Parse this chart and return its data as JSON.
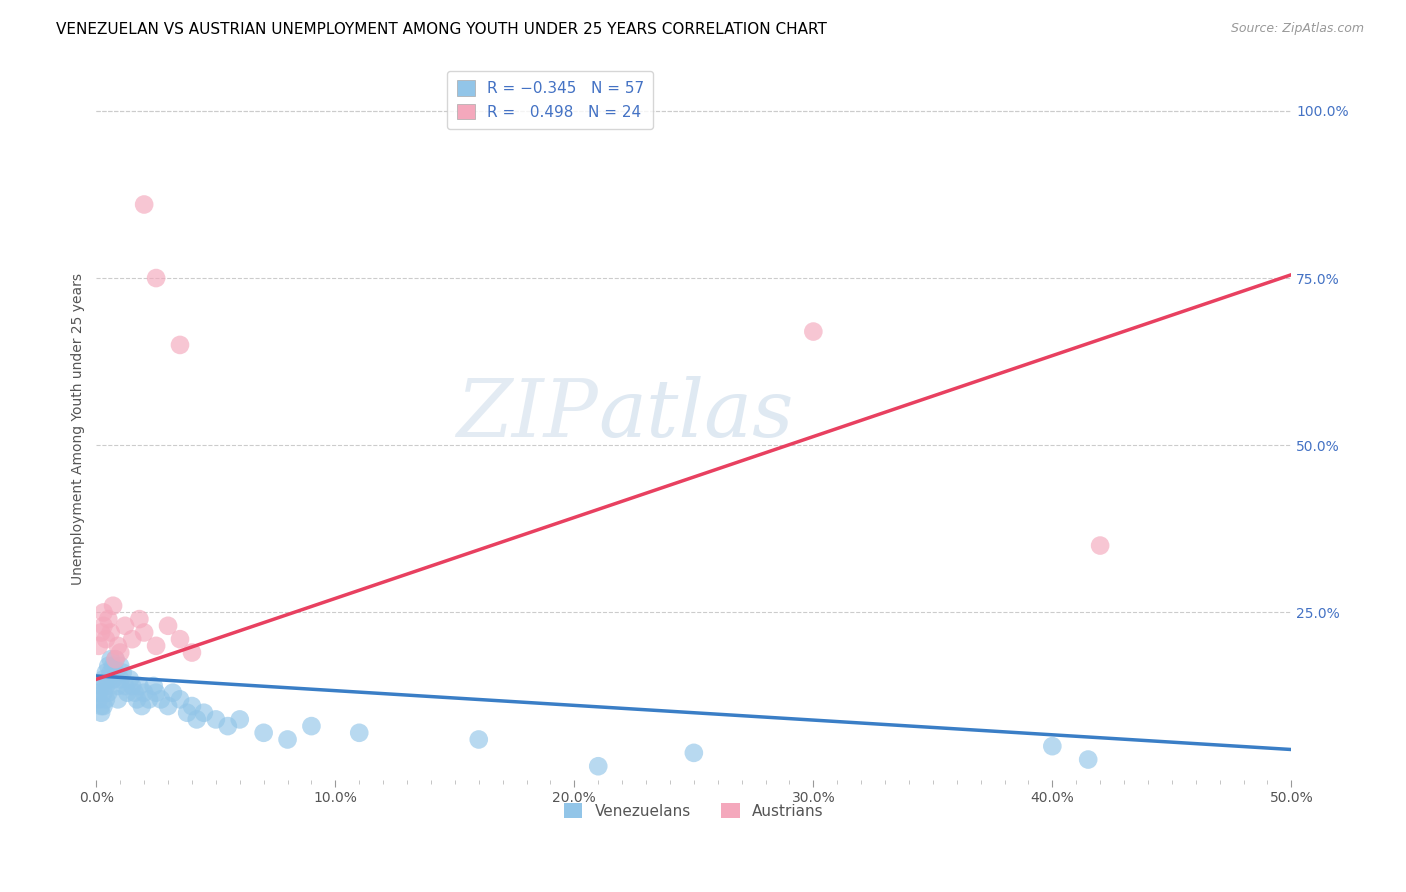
{
  "title": "VENEZUELAN VS AUSTRIAN UNEMPLOYMENT AMONG YOUTH UNDER 25 YEARS CORRELATION CHART",
  "source": "Source: ZipAtlas.com",
  "ylabel": "Unemployment Among Youth under 25 years",
  "legend_venezuelans": "Venezuelans",
  "legend_austrians": "Austrians",
  "xlim": [
    0.0,
    0.5
  ],
  "ylim": [
    0.0,
    1.05
  ],
  "xtick_labels": [
    "0.0%",
    "",
    "",
    "",
    "",
    "",
    "",
    "",
    "",
    "",
    "10.0%",
    "",
    "",
    "",
    "",
    "",
    "",
    "",
    "",
    "",
    "20.0%",
    "",
    "",
    "",
    "",
    "",
    "",
    "",
    "",
    "",
    "30.0%",
    "",
    "",
    "",
    "",
    "",
    "",
    "",
    "",
    "",
    "40.0%",
    "",
    "",
    "",
    "",
    "",
    "",
    "",
    "",
    "",
    "50.0%"
  ],
  "xtick_values": [
    0.0,
    0.01,
    0.02,
    0.03,
    0.04,
    0.05,
    0.06,
    0.07,
    0.08,
    0.09,
    0.1,
    0.11,
    0.12,
    0.13,
    0.14,
    0.15,
    0.16,
    0.17,
    0.18,
    0.19,
    0.2,
    0.21,
    0.22,
    0.23,
    0.24,
    0.25,
    0.26,
    0.27,
    0.28,
    0.29,
    0.3,
    0.31,
    0.32,
    0.33,
    0.34,
    0.35,
    0.36,
    0.37,
    0.38,
    0.39,
    0.4,
    0.41,
    0.42,
    0.43,
    0.44,
    0.45,
    0.46,
    0.47,
    0.48,
    0.49,
    0.5
  ],
  "ytick_right_labels": [
    "100.0%",
    "75.0%",
    "50.0%",
    "25.0%"
  ],
  "ytick_right_values": [
    1.0,
    0.75,
    0.5,
    0.25
  ],
  "r_venezuelan": -0.345,
  "n_venezuelan": 57,
  "r_austrian": 0.498,
  "n_austrian": 24,
  "color_venezuelan": "#92C5E8",
  "color_austrian": "#F4A8BC",
  "line_color_venezuelan": "#3A7EC6",
  "line_color_austrian": "#E84060",
  "watermark_zip": "ZIP",
  "watermark_atlas": "atlas",
  "title_fontsize": 11,
  "source_fontsize": 9,
  "venezuelan_x": [
    0.001,
    0.001,
    0.002,
    0.002,
    0.002,
    0.003,
    0.003,
    0.003,
    0.004,
    0.004,
    0.004,
    0.005,
    0.005,
    0.005,
    0.006,
    0.006,
    0.007,
    0.007,
    0.008,
    0.008,
    0.009,
    0.009,
    0.01,
    0.01,
    0.011,
    0.012,
    0.013,
    0.014,
    0.015,
    0.016,
    0.017,
    0.018,
    0.019,
    0.02,
    0.022,
    0.024,
    0.025,
    0.027,
    0.03,
    0.032,
    0.035,
    0.038,
    0.04,
    0.042,
    0.045,
    0.05,
    0.055,
    0.06,
    0.07,
    0.08,
    0.09,
    0.11,
    0.16,
    0.21,
    0.25,
    0.4,
    0.415
  ],
  "venezuelan_y": [
    0.13,
    0.12,
    0.14,
    0.11,
    0.1,
    0.15,
    0.13,
    0.11,
    0.16,
    0.14,
    0.12,
    0.17,
    0.15,
    0.13,
    0.18,
    0.16,
    0.17,
    0.15,
    0.18,
    0.16,
    0.14,
    0.12,
    0.17,
    0.15,
    0.16,
    0.14,
    0.13,
    0.15,
    0.14,
    0.13,
    0.12,
    0.14,
    0.11,
    0.13,
    0.12,
    0.14,
    0.13,
    0.12,
    0.11,
    0.13,
    0.12,
    0.1,
    0.11,
    0.09,
    0.1,
    0.09,
    0.08,
    0.09,
    0.07,
    0.06,
    0.08,
    0.07,
    0.06,
    0.02,
    0.04,
    0.05,
    0.03
  ],
  "austrian_x": [
    0.001,
    0.002,
    0.003,
    0.003,
    0.004,
    0.005,
    0.006,
    0.007,
    0.008,
    0.009,
    0.01,
    0.012,
    0.015,
    0.018,
    0.02,
    0.025,
    0.03,
    0.035,
    0.04,
    0.02,
    0.025,
    0.035,
    0.3,
    0.42
  ],
  "austrian_y": [
    0.2,
    0.22,
    0.23,
    0.25,
    0.21,
    0.24,
    0.22,
    0.26,
    0.18,
    0.2,
    0.19,
    0.23,
    0.21,
    0.24,
    0.22,
    0.2,
    0.23,
    0.21,
    0.19,
    0.86,
    0.75,
    0.65,
    0.67,
    0.35
  ],
  "austrian_line_x0": 0.0,
  "austrian_line_y0": 0.15,
  "austrian_line_x1": 0.5,
  "austrian_line_y1": 0.755,
  "venezuelan_line_x0": 0.0,
  "venezuelan_line_y0": 0.155,
  "venezuelan_line_x1": 0.5,
  "venezuelan_line_y1": 0.045
}
